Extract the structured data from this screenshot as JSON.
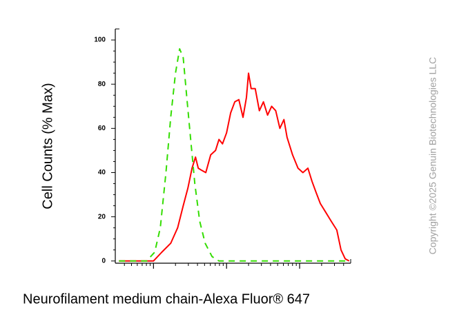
{
  "chart_data": {
    "type": "line",
    "x_label": "Neurofilament medium chain-Alexa Fluor® 647",
    "y_label": "Cell Counts (% Max)",
    "watermark": "Copyright ©2025 Genuin Biotechnologies LLC",
    "xscale": "log",
    "xlim": [
      30,
      50000
    ],
    "xticks": [
      100,
      1000,
      10000
    ],
    "ylim": [
      -1,
      105
    ],
    "yticks": [
      0,
      20,
      40,
      60,
      80,
      100
    ],
    "series": [
      {
        "name": null,
        "color": "#ff0000",
        "line_style": "solid",
        "x": [
          33.7,
          100,
          130,
          172,
          214,
          255,
          296,
          337,
          376,
          410,
          458,
          520,
          606,
          706,
          787,
          880,
          1000,
          1138,
          1296,
          1475,
          1679,
          1872,
          2000,
          2170,
          2470,
          2810,
          3200,
          3640,
          4140,
          4710,
          5360,
          6100,
          6730,
          8000,
          9500,
          11100,
          12980,
          14800,
          16800,
          19200,
          22800,
          27100,
          32300,
          36900,
          42000,
          47600
        ],
        "values": [
          0,
          0,
          4,
          8,
          15,
          25,
          33,
          42,
          47,
          42,
          41,
          40,
          48,
          50,
          55,
          53,
          58,
          67,
          72,
          73,
          65,
          74,
          85,
          78,
          78,
          68,
          72,
          66,
          70,
          68,
          60,
          64,
          56,
          48,
          42,
          40,
          42,
          36,
          31,
          26,
          22,
          18,
          14,
          5,
          1,
          0
        ]
      },
      {
        "name": null,
        "color": "#33dd00",
        "line_style": "dashed",
        "x": [
          33.7,
          80.5,
          104,
          124,
          148,
          172,
          200,
          228,
          255,
          284,
          323,
          368,
          429,
          510,
          634,
          787,
          43800
        ],
        "values": [
          0,
          0,
          4,
          15,
          40,
          65,
          85,
          96,
          92,
          75,
          55,
          35,
          18,
          8,
          2,
          0,
          0
        ]
      }
    ]
  }
}
